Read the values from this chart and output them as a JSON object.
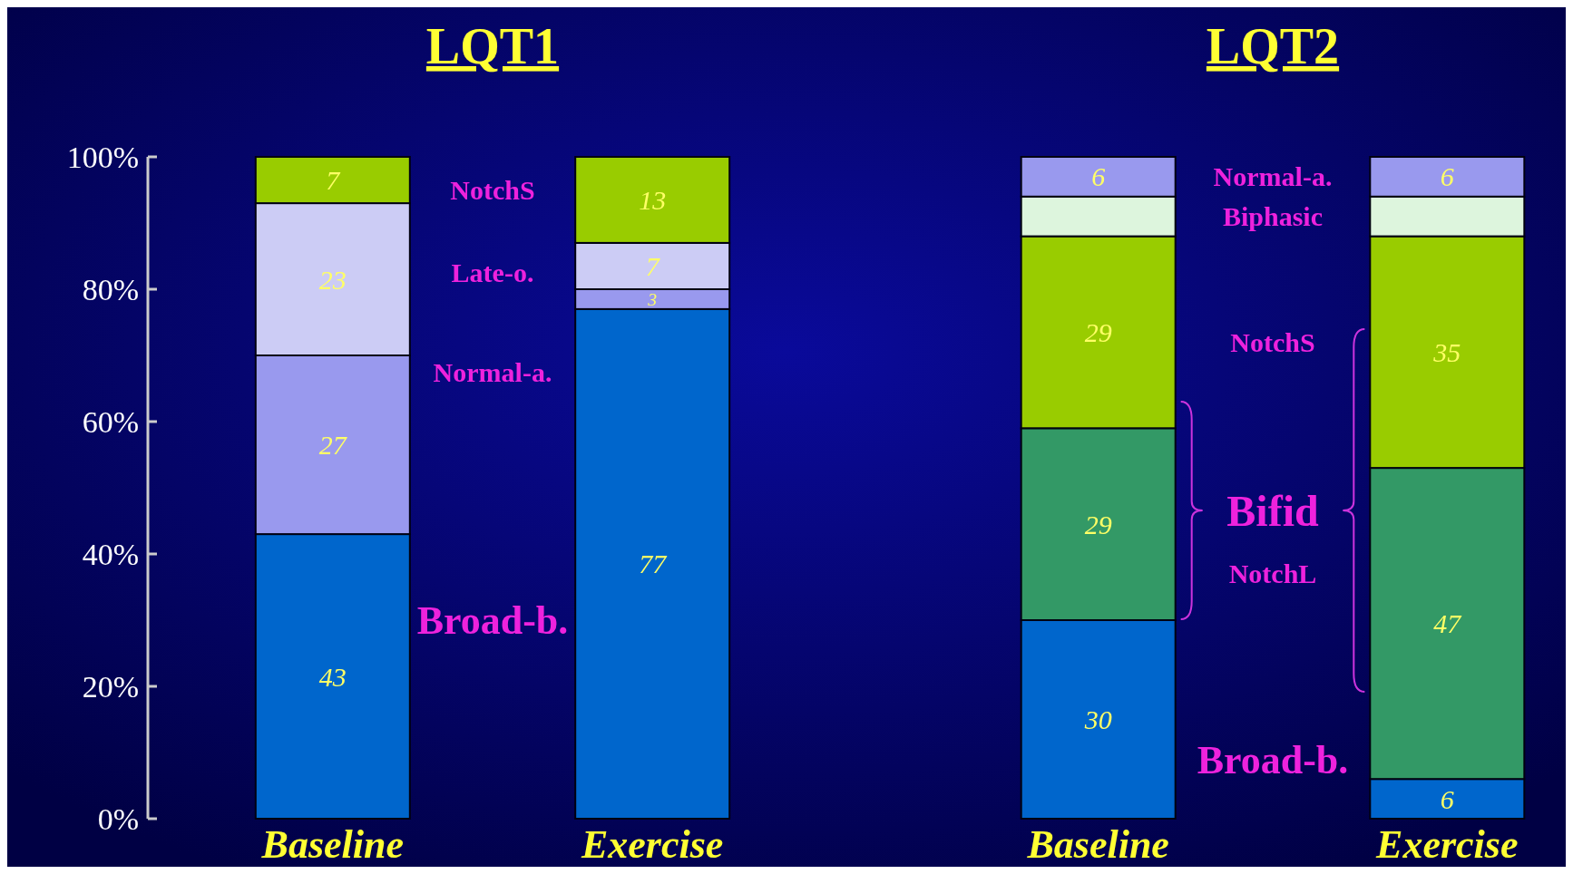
{
  "chart_data": [
    {
      "type": "bar",
      "title": "LQT1",
      "categories": [
        "Baseline",
        "Exercise"
      ],
      "stacked": true,
      "ylim": [
        0,
        100
      ],
      "yticks": [
        {
          "value": 0,
          "label": "0%"
        },
        {
          "value": 20,
          "label": "20%"
        },
        {
          "value": 40,
          "label": "40%"
        },
        {
          "value": 60,
          "label": "60%"
        },
        {
          "value": 80,
          "label": "80%"
        },
        {
          "value": 100,
          "label": "100%"
        }
      ],
      "data_labels": true,
      "series": [
        {
          "name": "Broad-b.",
          "color": "#0066cc",
          "values": [
            43,
            77
          ]
        },
        {
          "name": "Normal-a.",
          "color": "#9999ee",
          "values": [
            27,
            3
          ]
        },
        {
          "name": "Late-o.",
          "color": "#ccccf5",
          "values": [
            23,
            7
          ]
        },
        {
          "name": "NotchS",
          "color": "#99cc00",
          "values": [
            7,
            13
          ]
        }
      ]
    },
    {
      "type": "bar",
      "title": "LQT2",
      "categories": [
        "Baseline",
        "Exercise"
      ],
      "stacked": true,
      "ylim": [
        0,
        100
      ],
      "tick_labels": "x",
      "data_labels": true,
      "annotations": [
        "Bifid"
      ],
      "series": [
        {
          "name": "Broad-b.",
          "color": "#0066cc",
          "values": [
            30,
            6
          ]
        },
        {
          "name": "NotchL",
          "color": "#339966",
          "values": [
            29,
            47
          ]
        },
        {
          "name": "NotchS",
          "color": "#99cc00",
          "values": [
            29,
            35
          ]
        },
        {
          "name": "Biphasic",
          "color": "#ddf5dd",
          "values": [
            6,
            6
          ],
          "value_labels": [
            null,
            null
          ]
        },
        {
          "name": "Normal-a.",
          "color": "#9999ee",
          "values": [
            6,
            6
          ]
        }
      ]
    }
  ]
}
